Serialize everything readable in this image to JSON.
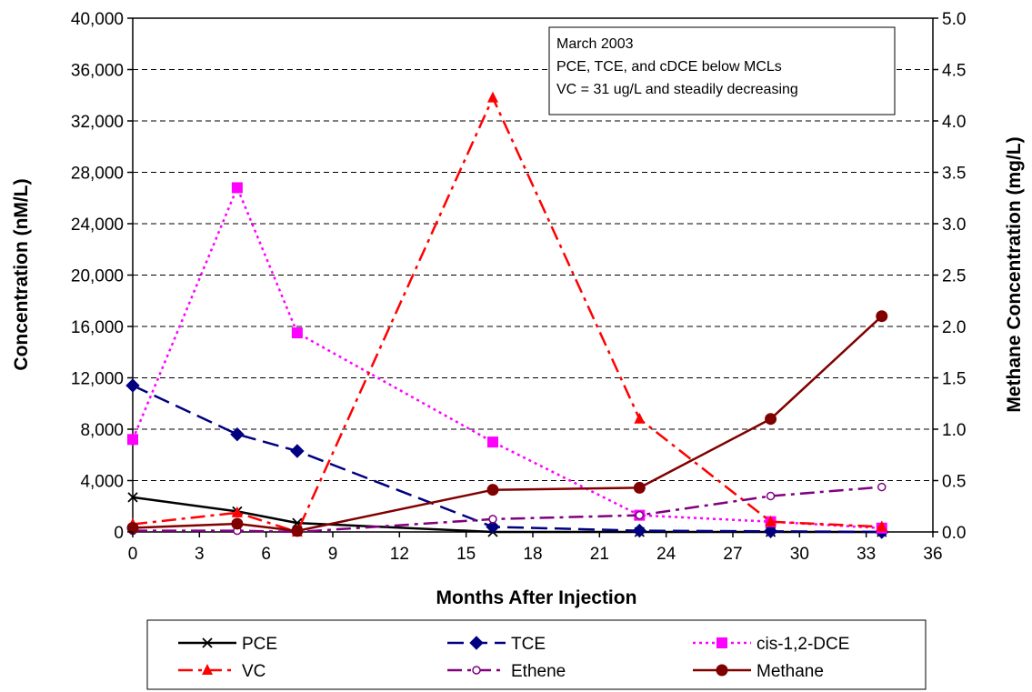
{
  "chart_data": {
    "type": "line",
    "xlabel": "Months After Injection",
    "ylabel": "Concentration (nM/L)",
    "y2label": "Methane Concentration (mg/L)",
    "xlim": [
      0,
      36
    ],
    "ylim": [
      0,
      40000
    ],
    "y2lim": [
      0,
      5.0
    ],
    "x_ticks": [
      "0",
      "3",
      "6",
      "9",
      "12",
      "15",
      "18",
      "21",
      "24",
      "27",
      "30",
      "33",
      "36"
    ],
    "y_ticks": [
      "0",
      "4,000",
      "8,000",
      "12,000",
      "16,000",
      "20,000",
      "24,000",
      "28,000",
      "32,000",
      "36,000",
      "40,000"
    ],
    "y2_ticks": [
      "0.0",
      "0.5",
      "1.0",
      "1.5",
      "2.0",
      "2.5",
      "3.0",
      "3.5",
      "4.0",
      "4.5",
      "5.0"
    ],
    "grid": "horizontal dashed",
    "legend_position": "bottom",
    "annotation": [
      "March 2003",
      "PCE, TCE, and cDCE below MCLs",
      "VC = 31 ug/L and steadily decreasing"
    ],
    "series": [
      {
        "name": "PCE",
        "axis": "left",
        "color": "#000000",
        "dash": "solid",
        "marker": "x",
        "points": [
          [
            0,
            2700
          ],
          [
            4.7,
            1600
          ],
          [
            7.4,
            700
          ],
          [
            16.2,
            0
          ],
          [
            22.8,
            0
          ],
          [
            28.7,
            0
          ],
          [
            33.7,
            0
          ]
        ]
      },
      {
        "name": "TCE",
        "axis": "left",
        "color": "#000080",
        "dash": "long",
        "marker": "diamond",
        "points": [
          [
            0,
            11400
          ],
          [
            4.7,
            7600
          ],
          [
            7.4,
            6300
          ],
          [
            16.2,
            400
          ],
          [
            22.8,
            100
          ],
          [
            28.7,
            50
          ],
          [
            33.7,
            0
          ]
        ]
      },
      {
        "name": "cis-1,2-DCE",
        "axis": "left",
        "color": "#ff00ff",
        "dash": "dot",
        "marker": "square",
        "points": [
          [
            0,
            7200
          ],
          [
            4.7,
            26800
          ],
          [
            7.4,
            15500
          ],
          [
            16.2,
            7000
          ],
          [
            22.8,
            1300
          ],
          [
            28.7,
            800
          ],
          [
            33.7,
            300
          ]
        ]
      },
      {
        "name": "VC",
        "axis": "left",
        "color": "#ff0000",
        "dash": "dashdot",
        "marker": "triangle",
        "points": [
          [
            0,
            600
          ],
          [
            4.7,
            1500
          ],
          [
            7.4,
            0
          ],
          [
            16.2,
            33800
          ],
          [
            22.8,
            8800
          ],
          [
            28.7,
            800
          ],
          [
            33.7,
            400
          ]
        ]
      },
      {
        "name": "Ethene",
        "axis": "left",
        "color": "#800080",
        "dash": "dashdot",
        "marker": "open-circle",
        "points": [
          [
            0,
            100
          ],
          [
            4.7,
            100
          ],
          [
            7.4,
            0
          ],
          [
            16.2,
            1000
          ],
          [
            22.8,
            1300
          ],
          [
            28.7,
            2800
          ],
          [
            33.7,
            3500
          ]
        ]
      },
      {
        "name": "Methane",
        "axis": "right",
        "color": "#800000",
        "dash": "solid",
        "marker": "filled-circle",
        "points": [
          [
            0,
            0.04
          ],
          [
            4.7,
            0.08
          ],
          [
            7.4,
            0.01
          ],
          [
            16.2,
            0.41
          ],
          [
            22.8,
            0.43
          ],
          [
            28.7,
            1.1
          ],
          [
            33.7,
            2.1
          ]
        ]
      }
    ]
  }
}
